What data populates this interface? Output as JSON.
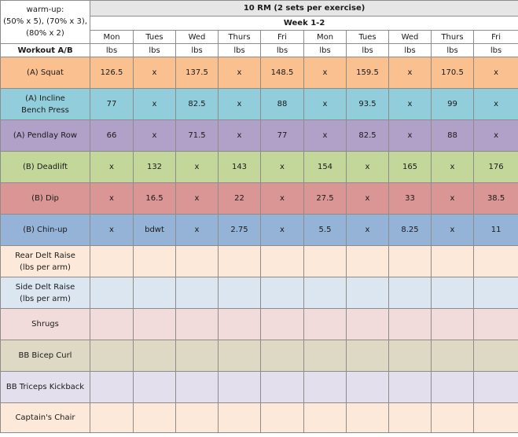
{
  "header": {
    "warmup_lines": [
      "warm-up:",
      "(50% x 5), (70% x 3),",
      "(80% x 2)"
    ],
    "title": "10 RM (2 sets per exercise)",
    "week": "Week 1-2",
    "workout_label": "Workout A/B"
  },
  "days": [
    "Mon",
    "Tues",
    "Wed",
    "Thurs",
    "Fri",
    "Mon",
    "Tues",
    "Wed",
    "Thurs",
    "Fri"
  ],
  "units": [
    "lbs",
    "lbs",
    "lbs",
    "lbs",
    "lbs",
    "lbs",
    "lbs",
    "lbs",
    "lbs",
    "lbs"
  ],
  "exercises": [
    {
      "lines": [
        "(A) Squat"
      ],
      "color": "#fac090",
      "values": [
        "126.5",
        "x",
        "137.5",
        "x",
        "148.5",
        "x",
        "159.5",
        "x",
        "170.5",
        "x"
      ]
    },
    {
      "lines": [
        "(A) Incline",
        "Bench Press"
      ],
      "color": "#92cddc",
      "values": [
        "77",
        "x",
        "82.5",
        "x",
        "88",
        "x",
        "93.5",
        "x",
        "99",
        "x"
      ]
    },
    {
      "lines": [
        "(A) Pendlay Row"
      ],
      "color": "#b1a0c7",
      "values": [
        "66",
        "x",
        "71.5",
        "x",
        "77",
        "x",
        "82.5",
        "x",
        "88",
        "x"
      ]
    },
    {
      "lines": [
        "(B) Deadlift"
      ],
      "color": "#c4d79b",
      "values": [
        "x",
        "132",
        "x",
        "143",
        "x",
        "154",
        "x",
        "165",
        "x",
        "176"
      ]
    },
    {
      "lines": [
        "(B) Dip"
      ],
      "color": "#da9694",
      "values": [
        "x",
        "16.5",
        "x",
        "22",
        "x",
        "27.5",
        "x",
        "33",
        "x",
        "38.5"
      ]
    },
    {
      "lines": [
        "(B) Chin-up"
      ],
      "color": "#95b3d7",
      "values": [
        "x",
        "bdwt",
        "x",
        "2.75",
        "x",
        "5.5",
        "x",
        "8.25",
        "x",
        "11"
      ]
    },
    {
      "lines": [
        "Rear Delt Raise",
        "(lbs per arm)"
      ],
      "color": "#fde9d9",
      "values": [
        "",
        "",
        "",
        "",
        "",
        "",
        "",
        "",
        "",
        ""
      ]
    },
    {
      "lines": [
        "Side Delt Raise",
        "(lbs per arm)"
      ],
      "color": "#dce6f1",
      "values": [
        "",
        "",
        "",
        "",
        "",
        "",
        "",
        "",
        "",
        ""
      ]
    },
    {
      "lines": [
        "Shrugs"
      ],
      "color": "#f2dcdb",
      "values": [
        "",
        "",
        "",
        "",
        "",
        "",
        "",
        "",
        "",
        ""
      ]
    },
    {
      "lines": [
        "BB Bicep Curl"
      ],
      "color": "#ddd9c4",
      "values": [
        "",
        "",
        "",
        "",
        "",
        "",
        "",
        "",
        "",
        ""
      ]
    },
    {
      "lines": [
        "BB Triceps Kickback"
      ],
      "color": "#e4dfec",
      "values": [
        "",
        "",
        "",
        "",
        "",
        "",
        "",
        "",
        "",
        ""
      ]
    },
    {
      "lines": [
        "Captain's Chair"
      ],
      "color": "#fde9d9",
      "values": [
        "",
        "",
        "",
        "",
        "",
        "",
        "",
        "",
        "",
        ""
      ]
    }
  ]
}
